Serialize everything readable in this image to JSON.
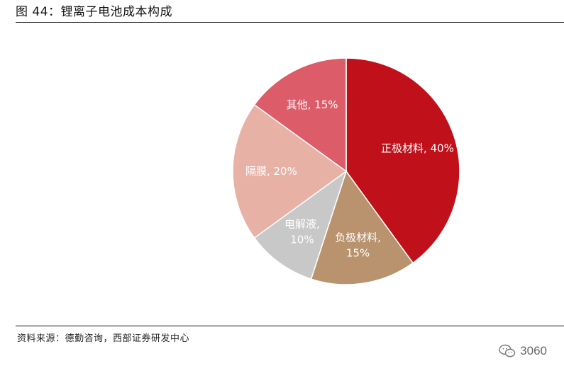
{
  "header": {
    "title": "图 44：锂离子电池成本构成"
  },
  "footer": {
    "source": "资料来源：德勤咨询，西部证券研发中心"
  },
  "watermark": {
    "text": "3060",
    "icon": "wechat-icon"
  },
  "chart_data": {
    "type": "pie",
    "title": "锂离子电池成本构成",
    "slices": [
      {
        "name": "正极材料",
        "value": 40,
        "label_lines": [
          "正极材料, 40%"
        ],
        "color": "#C0111B"
      },
      {
        "name": "负极材料",
        "value": 15,
        "label_lines": [
          "负极材料,",
          "15%"
        ],
        "color": "#B8936E"
      },
      {
        "name": "电解液",
        "value": 10,
        "label_lines": [
          "电解液,",
          "10%"
        ],
        "color": "#C8C8C8"
      },
      {
        "name": "隔膜",
        "value": 20,
        "label_lines": [
          "隔膜, 20%"
        ],
        "color": "#E8B1A6"
      },
      {
        "name": "其他",
        "value": 15,
        "label_lines": [
          "其他, 15%"
        ],
        "color": "#DC5C69"
      }
    ],
    "start_angle_deg": 0,
    "direction": "clockwise"
  }
}
